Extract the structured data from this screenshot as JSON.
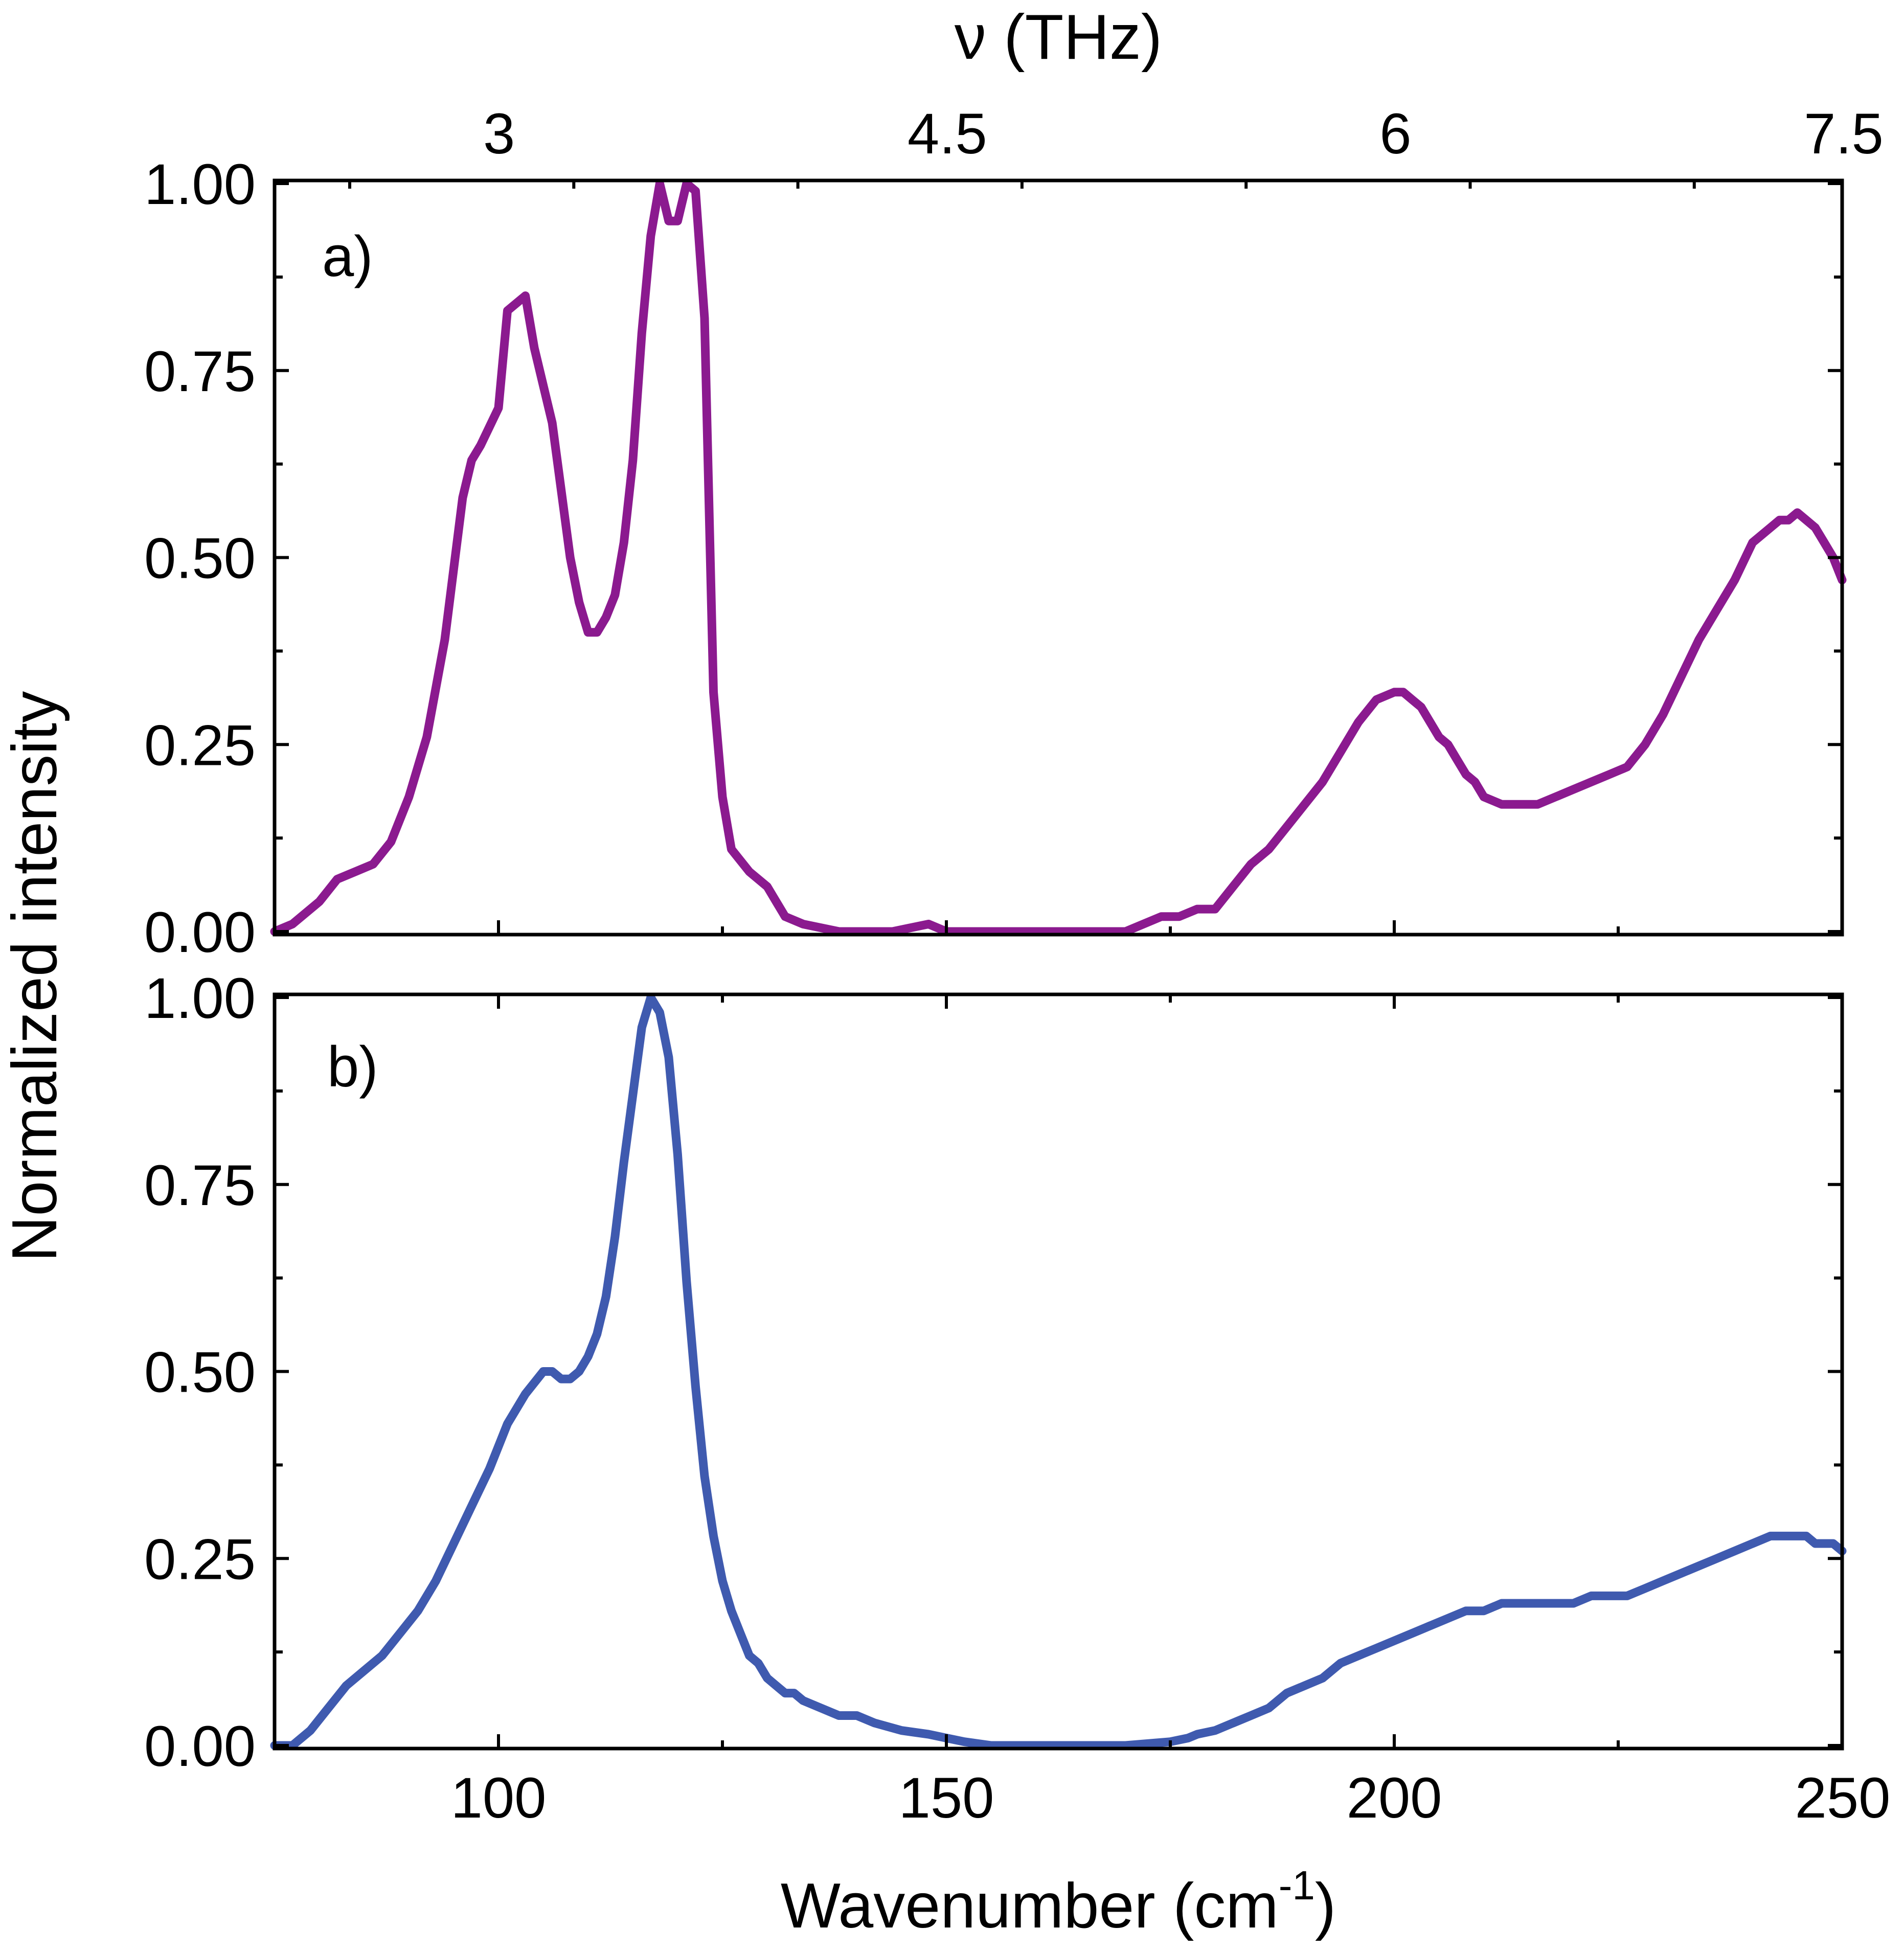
{
  "chart_data": {
    "type": "line",
    "xlabel_main": "Wavenumber (cm",
    "xlabel_sup": "-1",
    "xlabel_close": ")",
    "top_axis_label": "ν (THz)",
    "ylabel": "Normalized intensity",
    "xlim": [
      75,
      250
    ],
    "ylim": [
      0,
      1
    ],
    "x_ticks": [
      100,
      150,
      200,
      250
    ],
    "x_tick_labels": [
      "100",
      "150",
      "200",
      "250"
    ],
    "top_ticks_thz": [
      3,
      4.5,
      6,
      7.5
    ],
    "top_tick_labels": [
      "3",
      "4.5",
      "6",
      "7.5"
    ],
    "y_ticks": [
      0,
      0.25,
      0.5,
      0.75,
      1.0
    ],
    "y_tick_labels": [
      "0.00",
      "0.25",
      "0.50",
      "0.75",
      "1.00"
    ],
    "panels": [
      {
        "label": "a)",
        "color": "#8B1A8F",
        "x": [
          75,
          77,
          80,
          82,
          84,
          86,
          88,
          90,
          92,
          94,
          96,
          97,
          98,
          100,
          101,
          103,
          104,
          106,
          108,
          109,
          110,
          111,
          112,
          113,
          114,
          115,
          116,
          117,
          118,
          119,
          120,
          121,
          122,
          123,
          124,
          125,
          126,
          128,
          130,
          131,
          132,
          134,
          136,
          138,
          140,
          142,
          144,
          146,
          148,
          150,
          152,
          154,
          156,
          158,
          160,
          162,
          165,
          168,
          170,
          172,
          174,
          176,
          178,
          180,
          182,
          184,
          186,
          188,
          190,
          192,
          194,
          196,
          198,
          200,
          201,
          202,
          203,
          204,
          205,
          206,
          207,
          208,
          209,
          210,
          212,
          214,
          215,
          216,
          218,
          220,
          222,
          224,
          226,
          228,
          230,
          232,
          234,
          236,
          238,
          240,
          242,
          243,
          244,
          245,
          246,
          247,
          248,
          249,
          250
        ],
        "y": [
          0.0,
          0.01,
          0.04,
          0.07,
          0.08,
          0.09,
          0.12,
          0.18,
          0.26,
          0.39,
          0.58,
          0.63,
          0.65,
          0.7,
          0.83,
          0.85,
          0.78,
          0.68,
          0.5,
          0.44,
          0.4,
          0.4,
          0.42,
          0.45,
          0.52,
          0.63,
          0.8,
          0.93,
          1.0,
          0.95,
          0.95,
          1.0,
          0.99,
          0.82,
          0.32,
          0.18,
          0.11,
          0.08,
          0.06,
          0.04,
          0.02,
          0.01,
          0.005,
          0.0,
          0.0,
          0.0,
          0.0,
          0.005,
          0.01,
          0.0,
          0.0,
          0.0,
          0.0,
          0.0,
          0.0,
          0.0,
          0.0,
          0.0,
          0.0,
          0.01,
          0.02,
          0.02,
          0.03,
          0.03,
          0.06,
          0.09,
          0.11,
          0.14,
          0.17,
          0.2,
          0.24,
          0.28,
          0.31,
          0.32,
          0.32,
          0.31,
          0.3,
          0.28,
          0.26,
          0.25,
          0.23,
          0.21,
          0.2,
          0.18,
          0.17,
          0.17,
          0.17,
          0.17,
          0.18,
          0.19,
          0.2,
          0.21,
          0.22,
          0.25,
          0.29,
          0.34,
          0.39,
          0.43,
          0.47,
          0.52,
          0.54,
          0.55,
          0.55,
          0.56,
          0.55,
          0.54,
          0.52,
          0.5,
          0.47
        ]
      },
      {
        "label": "b)",
        "color": "#3F5AAF",
        "x": [
          75,
          77,
          79,
          81,
          83,
          85,
          87,
          89,
          91,
          93,
          95,
          97,
          99,
          101,
          103,
          105,
          106,
          107,
          108,
          109,
          110,
          111,
          112,
          113,
          114,
          115,
          116,
          117,
          118,
          119,
          120,
          121,
          122,
          123,
          124,
          125,
          126,
          127,
          128,
          129,
          130,
          131,
          132,
          133,
          134,
          136,
          138,
          140,
          142,
          145,
          148,
          150,
          152,
          155,
          158,
          160,
          165,
          170,
          175,
          177,
          178,
          180,
          182,
          184,
          186,
          188,
          190,
          192,
          194,
          196,
          198,
          200,
          202,
          204,
          206,
          208,
          210,
          212,
          214,
          216,
          218,
          220,
          222,
          224,
          226,
          228,
          230,
          232,
          234,
          236,
          238,
          240,
          242,
          244,
          245,
          246,
          247,
          248,
          249,
          250
        ],
        "y": [
          0.0,
          0.0,
          0.02,
          0.05,
          0.08,
          0.1,
          0.12,
          0.15,
          0.18,
          0.22,
          0.27,
          0.32,
          0.37,
          0.43,
          0.47,
          0.5,
          0.5,
          0.49,
          0.49,
          0.5,
          0.52,
          0.55,
          0.6,
          0.68,
          0.78,
          0.87,
          0.96,
          1.0,
          0.98,
          0.92,
          0.79,
          0.62,
          0.48,
          0.36,
          0.28,
          0.22,
          0.18,
          0.15,
          0.12,
          0.11,
          0.09,
          0.08,
          0.07,
          0.07,
          0.06,
          0.05,
          0.04,
          0.04,
          0.03,
          0.02,
          0.015,
          0.01,
          0.005,
          0.0,
          0.0,
          0.0,
          0.0,
          0.0,
          0.005,
          0.01,
          0.015,
          0.02,
          0.03,
          0.04,
          0.05,
          0.07,
          0.08,
          0.09,
          0.11,
          0.12,
          0.13,
          0.14,
          0.15,
          0.16,
          0.17,
          0.18,
          0.18,
          0.19,
          0.19,
          0.19,
          0.19,
          0.19,
          0.2,
          0.2,
          0.2,
          0.21,
          0.22,
          0.23,
          0.24,
          0.25,
          0.26,
          0.27,
          0.28,
          0.28,
          0.28,
          0.28,
          0.27,
          0.27,
          0.27,
          0.26
        ]
      }
    ]
  }
}
